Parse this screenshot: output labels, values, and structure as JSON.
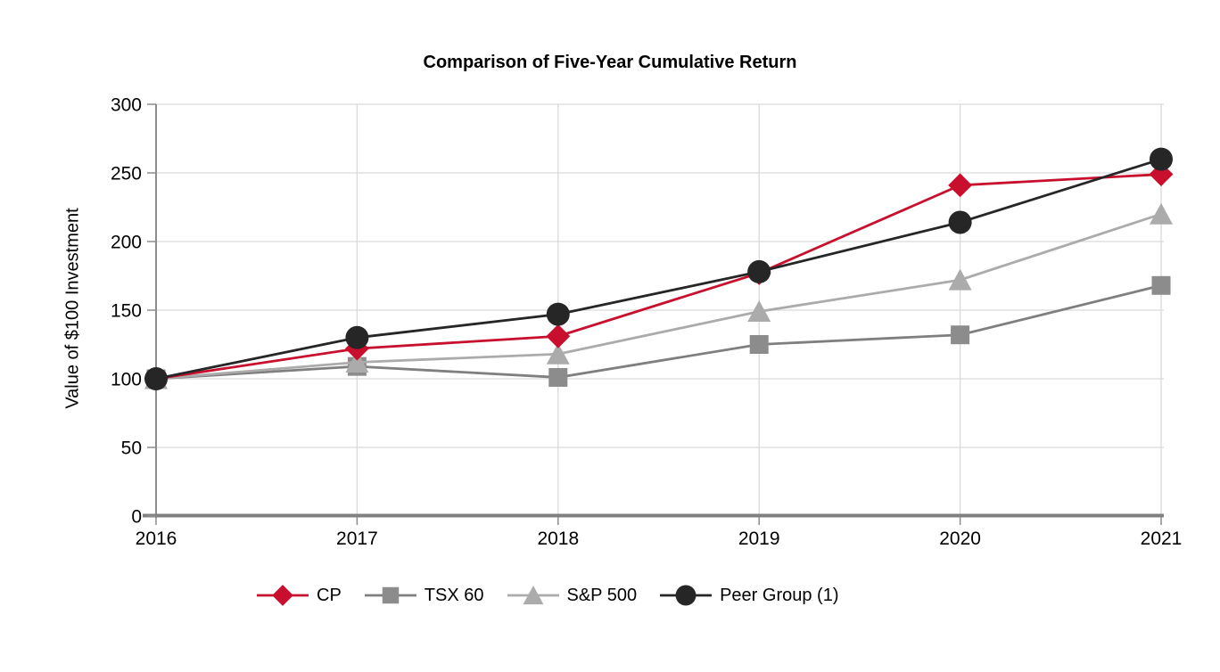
{
  "chart_data": {
    "type": "line",
    "title": "Comparison of Five-Year Cumulative Return",
    "xlabel": "",
    "ylabel": "Value of $100 Investment",
    "categories": [
      "2016",
      "2017",
      "2018",
      "2019",
      "2020",
      "2021"
    ],
    "y_ticks": [
      0,
      50,
      100,
      150,
      200,
      250,
      300
    ],
    "ylim": [
      0,
      300
    ],
    "grid": true,
    "legend_position": "bottom",
    "series": [
      {
        "name": "CP",
        "marker": "diamond",
        "color": "#C8102E",
        "line_color": "#C8102E",
        "z": 2,
        "values": [
          100,
          122,
          131,
          177,
          241,
          249
        ]
      },
      {
        "name": "TSX 60",
        "marker": "square",
        "color": "#8C8C8C",
        "line_color": "#7F7F7F",
        "z": 0,
        "values": [
          100,
          109,
          101,
          125,
          132,
          168
        ]
      },
      {
        "name": "S&P 500",
        "marker": "triangle",
        "color": "#ABABAB",
        "line_color": "#ABABAB",
        "z": 1,
        "values": [
          100,
          112,
          118,
          149,
          172,
          220
        ]
      },
      {
        "name": "Peer Group (1)",
        "marker": "circle",
        "color": "#262626",
        "line_color": "#262626",
        "z": 3,
        "values": [
          100,
          130,
          147,
          178,
          214,
          260
        ]
      }
    ],
    "colors": {
      "grid": "#D9D9D9",
      "axis_x": "#808080",
      "axis_y": "#8C8C8C",
      "tick": "#8C8C8C",
      "text": "#000000"
    }
  }
}
